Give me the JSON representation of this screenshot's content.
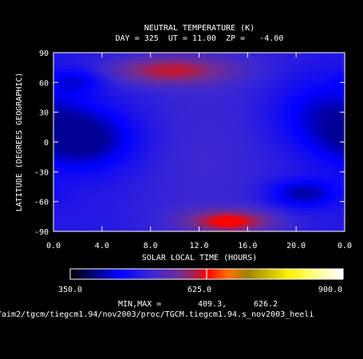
{
  "chart_data": {
    "type": "heatmap",
    "title_line1": "NEUTRAL TEMPERATURE (K)",
    "title_line2": "DAY = 325  UT = 11.00  ZP =   -4.00",
    "xlabel": "SOLAR LOCAL TIME (HOURS)",
    "ylabel": "LATITUDE (DEGREES GEOGRAPHIC)",
    "x_ticks": [
      "0.0",
      "4.0",
      "8.0",
      "12.0",
      "16.0",
      "20.0",
      "0.0"
    ],
    "y_ticks": [
      "90",
      "60",
      "30",
      "0",
      "-30",
      "-60",
      "-90"
    ],
    "colorbar": {
      "min_label": "350.0",
      "mid_label": "625.0",
      "max_label": "900.0",
      "min": 350.0,
      "max": 900.0,
      "midline": 625.0
    },
    "minmax_label": "MIN,MAX =",
    "min_value": "409.3,",
    "max_value": "626.2",
    "field_min": 409.3,
    "field_max": 626.2,
    "features": [
      {
        "lt": 9.5,
        "lat": 72,
        "value": 605,
        "lt_width": 3.5,
        "lat_width": 10
      },
      {
        "lt": 14.5,
        "lat": -80,
        "value": 626,
        "lt_width": 2.5,
        "lat_width": 8
      },
      {
        "lt": 2.5,
        "lat": 3,
        "value": 410,
        "lt_width": 3.2,
        "lat_width": 22
      },
      {
        "lt": 20.5,
        "lat": -52,
        "value": 420,
        "lt_width": 2.0,
        "lat_width": 10
      },
      {
        "lt": 22,
        "lat": 30,
        "value": 445,
        "lt_width": 3,
        "lat_width": 25
      },
      {
        "lt": 2,
        "lat": 62,
        "value": 450,
        "lt_width": 1.5,
        "lat_width": 8
      },
      {
        "lt": 11,
        "lat": -15,
        "value": 505,
        "lt_width": 3,
        "lat_width": 30
      }
    ]
  },
  "file_path": "/aim2/tgcm/tiegcm1.94/nov2003/proc/TGCM.tiegcm1.94.s_nov2003_heeli"
}
